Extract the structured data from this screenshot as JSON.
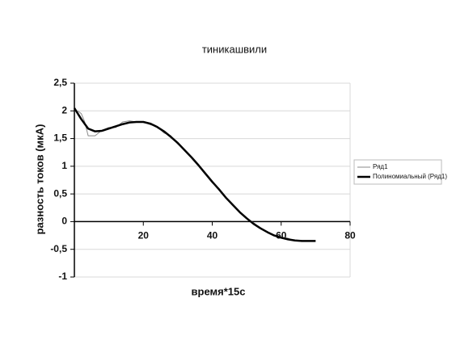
{
  "chart_data": {
    "type": "line",
    "title": "тиникашвили",
    "xlabel": "время*15с",
    "ylabel": "разность токов (мкА)",
    "xlim": [
      0,
      80
    ],
    "xticks": [
      20,
      40,
      60,
      80
    ],
    "ylim": [
      -1,
      2.5
    ],
    "yticks": [
      {
        "value": -1,
        "label": "-1"
      },
      {
        "value": -0.5,
        "label": "-0,5"
      },
      {
        "value": 0,
        "label": "0"
      },
      {
        "value": 0.5,
        "label": "0,5"
      },
      {
        "value": 1,
        "label": "1"
      },
      {
        "value": 1.5,
        "label": "1,5"
      },
      {
        "value": 2,
        "label": "2"
      },
      {
        "value": 2.5,
        "label": "2,5"
      }
    ],
    "grid": true,
    "legend": "right",
    "series": [
      {
        "name": "Ряд1",
        "color": "#8a8a8a",
        "width": 1,
        "x": [
          1,
          2,
          3,
          4,
          6,
          8,
          10,
          12,
          14,
          16,
          18,
          20,
          22,
          24,
          26,
          28,
          30,
          32,
          34,
          36,
          38,
          40,
          42,
          44,
          46,
          48,
          50,
          52,
          54,
          56,
          58,
          60,
          62,
          64,
          66
        ],
        "values": [
          2.0,
          1.95,
          1.8,
          1.55,
          1.55,
          1.65,
          1.7,
          1.7,
          1.8,
          1.82,
          1.8,
          1.8,
          1.75,
          1.72,
          1.6,
          1.55,
          1.4,
          1.3,
          1.15,
          1.0,
          0.85,
          0.7,
          0.6,
          0.42,
          0.3,
          0.18,
          0.05,
          -0.02,
          -0.12,
          -0.18,
          -0.25,
          -0.28,
          -0.3,
          -0.35,
          -0.35
        ]
      },
      {
        "name": "Полиномиальный (Ряд1)",
        "color": "#000000",
        "width": 2.5,
        "x": [
          0,
          2,
          4,
          6,
          8,
          10,
          12,
          14,
          16,
          18,
          20,
          22,
          24,
          26,
          28,
          30,
          32,
          34,
          36,
          38,
          40,
          42,
          44,
          46,
          48,
          50,
          52,
          54,
          56,
          58,
          60,
          62,
          64,
          66,
          68,
          70
        ],
        "values": [
          2.05,
          1.85,
          1.68,
          1.63,
          1.64,
          1.68,
          1.72,
          1.76,
          1.79,
          1.8,
          1.8,
          1.77,
          1.71,
          1.63,
          1.53,
          1.42,
          1.29,
          1.16,
          1.02,
          0.87,
          0.72,
          0.58,
          0.43,
          0.3,
          0.17,
          0.06,
          -0.04,
          -0.12,
          -0.19,
          -0.25,
          -0.29,
          -0.32,
          -0.34,
          -0.35,
          -0.35,
          -0.35
        ]
      }
    ]
  }
}
